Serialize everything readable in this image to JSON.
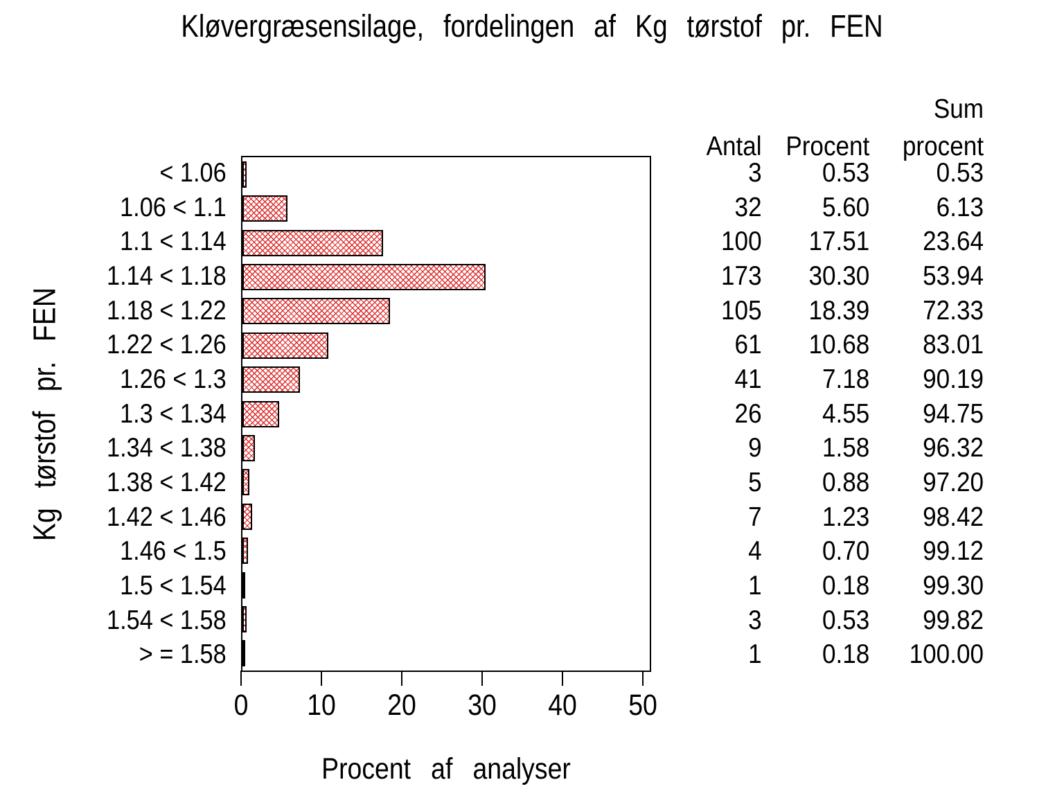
{
  "chart_data": {
    "type": "bar",
    "orientation": "horizontal",
    "title": "Kløvergræsensilage, fordelingen af Kg tørstof pr. FEN",
    "xlabel": "Procent af analyser",
    "ylabel": "Kg tørstof pr. FEN",
    "xlim": [
      0,
      51
    ],
    "x_ticks": [
      "0",
      "10",
      "20",
      "30",
      "40",
      "50"
    ],
    "grid": "off",
    "bar_color": "#dd2b2b",
    "bar_pattern": "diagonal-crosshatch",
    "frame_color": "#000000",
    "columns": {
      "antal": "Antal",
      "procent": "Procent",
      "sum_line1": "Sum",
      "sum_line2": "procent"
    },
    "rows": [
      {
        "label": "< 1.06",
        "antal": "3",
        "procent": "0.53",
        "sum": "0.53"
      },
      {
        "label": "1.06 < 1.1",
        "antal": "32",
        "procent": "5.60",
        "sum": "6.13"
      },
      {
        "label": "1.1 < 1.14",
        "antal": "100",
        "procent": "17.51",
        "sum": "23.64"
      },
      {
        "label": "1.14 < 1.18",
        "antal": "173",
        "procent": "30.30",
        "sum": "53.94"
      },
      {
        "label": "1.18 < 1.22",
        "antal": "105",
        "procent": "18.39",
        "sum": "72.33"
      },
      {
        "label": "1.22 < 1.26",
        "antal": "61",
        "procent": "10.68",
        "sum": "83.01"
      },
      {
        "label": "1.26 < 1.3",
        "antal": "41",
        "procent": "7.18",
        "sum": "90.19"
      },
      {
        "label": "1.3 < 1.34",
        "antal": "26",
        "procent": "4.55",
        "sum": "94.75"
      },
      {
        "label": "1.34 < 1.38",
        "antal": "9",
        "procent": "1.58",
        "sum": "96.32"
      },
      {
        "label": "1.38 < 1.42",
        "antal": "5",
        "procent": "0.88",
        "sum": "97.20"
      },
      {
        "label": "1.42 < 1.46",
        "antal": "7",
        "procent": "1.23",
        "sum": "98.42"
      },
      {
        "label": "1.46 < 1.5",
        "antal": "4",
        "procent": "0.70",
        "sum": "99.12"
      },
      {
        "label": "1.5 < 1.54",
        "antal": "1",
        "procent": "0.18",
        "sum": "99.30"
      },
      {
        "label": "1.54 < 1.58",
        "antal": "3",
        "procent": "0.53",
        "sum": "99.82"
      },
      {
        "label": ">  =  1.58",
        "antal": "1",
        "procent": "0.18",
        "sum": "100.00"
      }
    ]
  }
}
